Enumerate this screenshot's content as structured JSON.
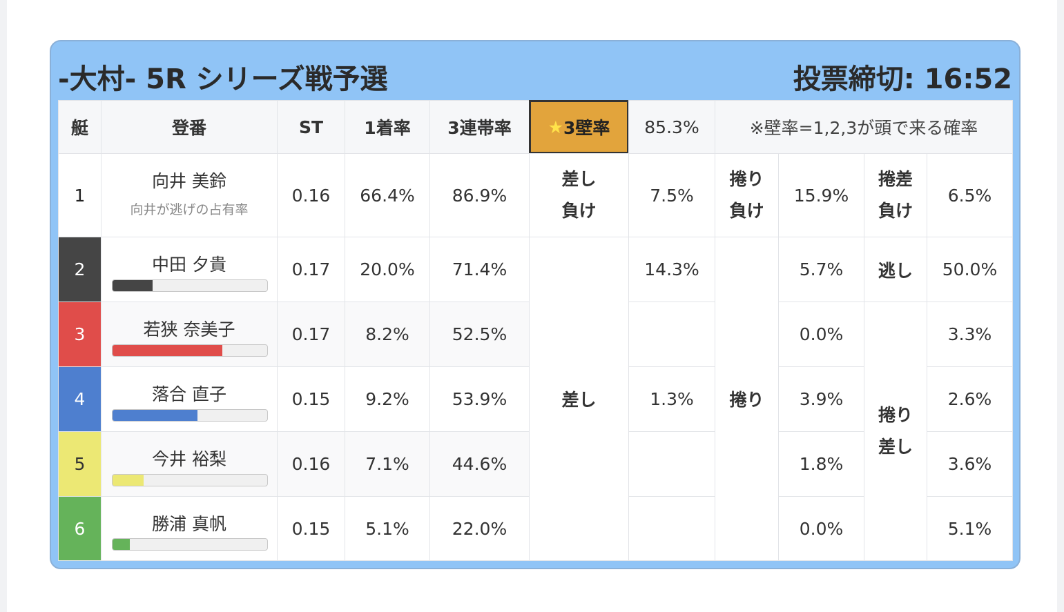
{
  "header": {
    "title": "-大村- 5R シリーズ戦予選",
    "deadline": "投票締切: 16:52"
  },
  "table": {
    "columns": [
      "艇",
      "登番",
      "ST",
      "1着率",
      "3連帯率"
    ],
    "wall_star": "★",
    "wall_label": "3壁率",
    "wall_rate": "85.3%",
    "note": "※壁率=1,2,3が頭で来る確率",
    "rows": [
      {
        "boat": "1",
        "name": "向井 美鈴",
        "sub": "向井が逃げの占有率",
        "st": "0.16",
        "win": "66.4%",
        "top3": "86.9%"
      },
      {
        "boat": "2",
        "name": "中田 夕貴",
        "bar": 26,
        "st": "0.17",
        "win": "20.0%",
        "top3": "71.4%"
      },
      {
        "boat": "3",
        "name": "若狭 奈美子",
        "bar": 71,
        "st": "0.17",
        "win": "8.2%",
        "top3": "52.5%"
      },
      {
        "boat": "4",
        "name": "落合 直子",
        "bar": 55,
        "st": "0.15",
        "win": "9.2%",
        "top3": "53.9%"
      },
      {
        "boat": "5",
        "name": "今井 裕梨",
        "bar": 20,
        "st": "0.16",
        "win": "7.1%",
        "top3": "44.6%"
      },
      {
        "boat": "6",
        "name": "勝浦 真帆",
        "bar": 11,
        "st": "0.15",
        "win": "5.1%",
        "top3": "22.0%"
      }
    ],
    "lose": {
      "sashi_label": "差し負け",
      "sashi": "7.5%",
      "makuri_label": "捲り負け",
      "makuri": "15.9%",
      "makurizashi_label": "捲差負け",
      "makurizashi": "6.5%"
    },
    "win_patterns": {
      "sashi_label": "差し",
      "sashi": [
        "14.3%",
        null,
        "1.3%",
        null,
        null
      ],
      "makuri_label": "捲り",
      "makuri": [
        "5.7%",
        "0.0%",
        "3.9%",
        "1.8%",
        "0.0%"
      ],
      "nige_label": "逃し",
      "makurizashi_label": "捲り差し",
      "last": [
        "50.0%",
        "3.3%",
        "2.6%",
        "3.6%",
        "5.1%"
      ]
    }
  }
}
